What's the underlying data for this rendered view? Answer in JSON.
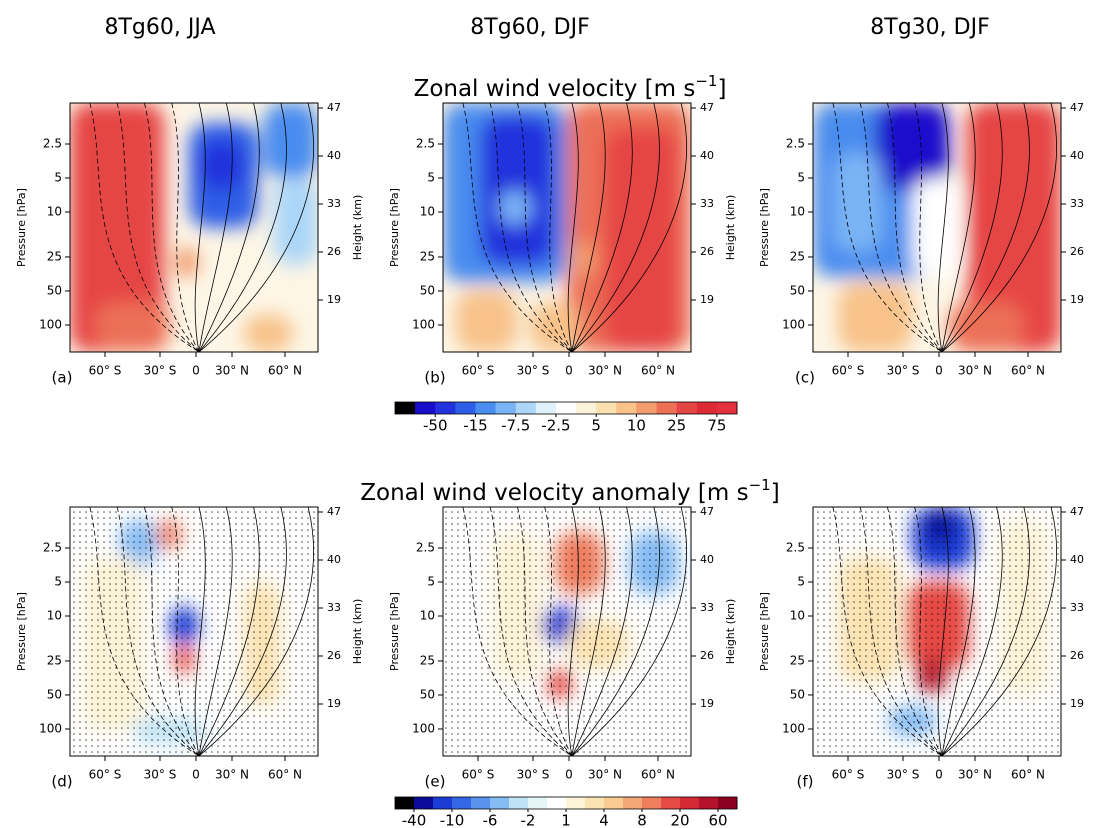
{
  "column_titles": [
    "8Tg60, JJA",
    "8Tg60, DJF",
    "8Tg30, DJF"
  ],
  "rows": [
    {
      "title": [
        "Zonal wind velocity [m s",
        "−1",
        "]"
      ],
      "panels": [
        "(a)",
        "(b)",
        "(c)"
      ],
      "colorbar": {
        "colors": [
          "#000000",
          "#1a0ccc",
          "#2233dd",
          "#2f5fe6",
          "#4a8cef",
          "#7ab4f5",
          "#abd6f8",
          "#dff1fb",
          "#ffffff",
          "#fdf3d8",
          "#fbe0b0",
          "#f8c28a",
          "#f29b6e",
          "#ec7056",
          "#e64545",
          "#dd2a35",
          "#e3303f"
        ],
        "labels": [
          -50,
          -15,
          -7.5,
          -2.5,
          5,
          10,
          25,
          75
        ]
      }
    },
    {
      "title": [
        "Zonal wind velocity anomaly [m s",
        "−1",
        "]"
      ],
      "panels": [
        "(d)",
        "(e)",
        "(f)"
      ],
      "colorbar": {
        "colors": [
          "#000000",
          "#0c0c9a",
          "#1c3cd6",
          "#3566e6",
          "#5a93ef",
          "#86bcf4",
          "#bfe3f6",
          "#e6f5f8",
          "#ffffff",
          "#fdf3d8",
          "#fbe3b4",
          "#f8cc92",
          "#f4a878",
          "#ee7e5e",
          "#e64a45",
          "#d42a35",
          "#b3122a",
          "#8b0020"
        ],
        "labels": [
          -40,
          -10,
          -6,
          -2,
          1,
          4,
          8,
          20,
          60
        ]
      }
    }
  ],
  "axes": {
    "y_label": "Pressure [hPa]",
    "y_ticks": [
      2.5,
      5,
      10,
      25,
      50,
      100
    ],
    "y2_label": "Height (km)",
    "y2_ticks": [
      47,
      40,
      33,
      26,
      19
    ],
    "x_ticks": [
      "60° S",
      "30° S",
      "0",
      "30° N",
      "60° N"
    ]
  }
}
